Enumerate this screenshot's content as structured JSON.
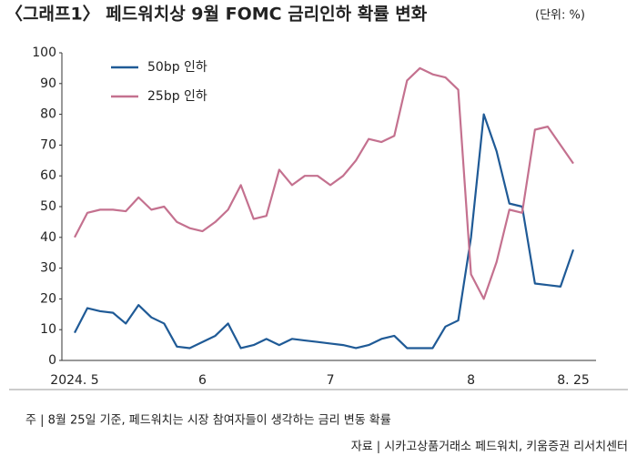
{
  "chart_data": {
    "type": "line",
    "title": "〈그래프1〉 페드워치상 9월 FOMC 금리인하 확률 변화",
    "subtitle": "(단위: %)",
    "categories": [
      "2024. 5",
      null,
      null,
      null,
      null,
      null,
      null,
      null,
      null,
      null,
      "6",
      null,
      null,
      null,
      null,
      null,
      null,
      null,
      null,
      null,
      "7",
      null,
      null,
      null,
      null,
      null,
      null,
      null,
      null,
      null,
      null,
      "8",
      null,
      null,
      null,
      null,
      null,
      null,
      null,
      "8. 25"
    ],
    "series": [
      {
        "name": "50bp 인하",
        "color": "#1f5a96",
        "values": [
          9,
          17,
          16,
          15.5,
          12,
          18,
          14,
          12,
          4.5,
          4,
          6,
          8,
          12,
          4,
          5,
          7,
          5,
          7,
          6.5,
          6,
          5.5,
          5,
          4,
          5,
          7,
          8,
          4,
          4,
          4,
          11,
          13,
          40,
          80,
          68,
          51,
          50,
          25,
          24.5,
          24,
          36
        ]
      },
      {
        "name": "25bp 인하",
        "color": "#c4718f",
        "values": [
          40,
          48,
          49,
          49,
          48.5,
          53,
          49,
          50,
          45,
          43,
          42,
          45,
          49,
          57,
          46,
          47,
          62,
          57,
          60,
          60,
          57,
          60,
          65,
          72,
          71,
          73,
          91,
          95,
          93,
          92,
          88,
          28,
          20,
          32,
          49,
          48,
          75,
          76,
          70,
          64
        ]
      }
    ],
    "ylim": [
      0,
      100
    ],
    "yticks": [
      0,
      10,
      20,
      30,
      40,
      50,
      60,
      70,
      80,
      90,
      100
    ],
    "grid": false,
    "legend": "upper-left",
    "notes": [
      "주 | 8월 25일 기준, 페드워치는 시장 참여자들이 생각하는 금리 변동 확률",
      "자료 | 시카고상품거래소 페드워치, 키움증권 리서치센터"
    ]
  }
}
